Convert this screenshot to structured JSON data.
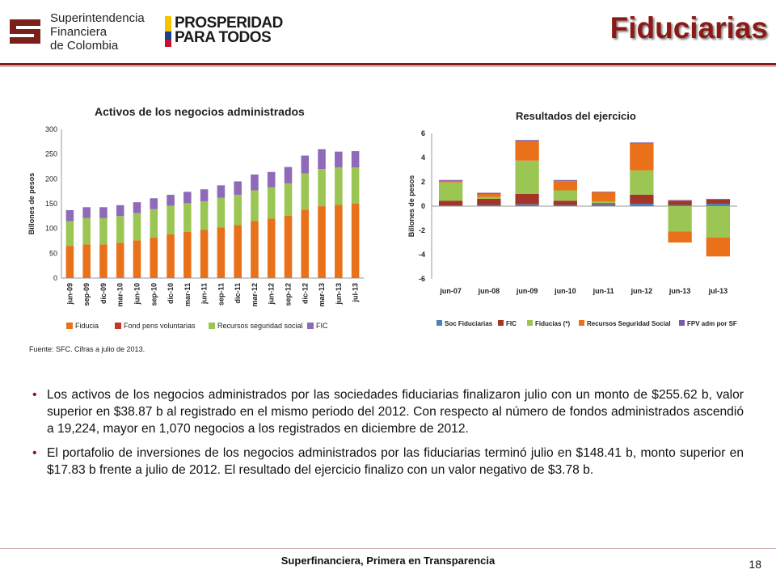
{
  "header": {
    "org_lines": [
      "Superintendencia",
      "Financiera",
      "de Colombia"
    ],
    "campaign_lines": [
      "PROSPERIDAD",
      "PARA TODOS"
    ],
    "title": "Fiduciarias"
  },
  "chart_data": [
    {
      "type": "bar",
      "title": "Activos de los negocios administrados",
      "ylabel": "Billones de pesos",
      "ylim": [
        0,
        300
      ],
      "yticks": [
        0,
        50,
        100,
        150,
        200,
        250,
        300
      ],
      "stacked": true,
      "legend_position": "bottom",
      "categories": [
        "jun-09",
        "sep-09",
        "dic-09",
        "mar-10",
        "jun-10",
        "sep-10",
        "dic-10",
        "mar-11",
        "jun-11",
        "sep-11",
        "dic-11",
        "mar-12",
        "jun-12",
        "sep-12",
        "dic-12",
        "mar-13",
        "jun-13",
        "jul-13"
      ],
      "series": [
        {
          "name": "Fiducia",
          "color": "#e8711a",
          "values": [
            65,
            68,
            68,
            71,
            76,
            82,
            88,
            93,
            97,
            102,
            107,
            115,
            120,
            126,
            138,
            145,
            148,
            150
          ]
        },
        {
          "name": "Fond pens voluntarias",
          "color": "#c0392b",
          "values": [
            0,
            0,
            0,
            0,
            0,
            0,
            0,
            0,
            0,
            0,
            0,
            0,
            0,
            0,
            0,
            0,
            0,
            0
          ]
        },
        {
          "name": "Recursos seguridad social",
          "color": "#9bc653",
          "values": [
            50,
            53,
            53,
            54,
            55,
            57,
            58,
            58,
            58,
            60,
            61,
            62,
            63,
            65,
            73,
            75,
            75,
            73
          ]
        },
        {
          "name": "FIC",
          "color": "#8e6ab8",
          "values": [
            22,
            22,
            22,
            22,
            22,
            22,
            22,
            23,
            24,
            25,
            27,
            32,
            31,
            33,
            36,
            40,
            32,
            33
          ]
        }
      ]
    },
    {
      "type": "bar",
      "title": "Resultados del ejercicio",
      "ylabel": "Billones de pesos",
      "ylim": [
        -6,
        6
      ],
      "yticks": [
        6,
        4,
        2,
        0,
        -2,
        -4,
        -6
      ],
      "stacked": true,
      "legend_position": "bottom",
      "categories": [
        "jun-07",
        "jun-08",
        "jun-09",
        "jun-10",
        "jun-11",
        "jun-12",
        "jun-13",
        "jul-13"
      ],
      "series": [
        {
          "name": "Soc Fiduciarias",
          "color": "#4f81bd",
          "values": [
            0.05,
            0.1,
            0.15,
            0.1,
            0.15,
            0.2,
            0.1,
            0.2
          ]
        },
        {
          "name": "FIC",
          "color": "#a33528",
          "values": [
            0.4,
            0.5,
            0.85,
            0.35,
            0.1,
            0.75,
            0.35,
            0.35
          ]
        },
        {
          "name": "Fiducias (*)",
          "color": "#9bc653",
          "values": [
            1.5,
            0.15,
            2.75,
            0.85,
            0.15,
            2.0,
            -2.1,
            -2.6
          ]
        },
        {
          "name": "Recursos Seguridad Social",
          "color": "#e8711a",
          "values": [
            0.1,
            0.25,
            1.6,
            0.75,
            0.75,
            2.2,
            -0.9,
            -1.55
          ]
        },
        {
          "name": "FPV adm por SF",
          "color": "#7e5aa0",
          "values": [
            0.1,
            0.1,
            0.1,
            0.1,
            0.05,
            0.1,
            0.05,
            0.05
          ]
        }
      ]
    }
  ],
  "source_note": "Fuente: SFC. Cifras a julio de 2013.",
  "bullets": [
    "Los activos de los negocios administrados por las sociedades fiduciarias finalizaron julio con un monto de $255.62 b, valor superior en $38.87 b al registrado en el mismo periodo del 2012. Con respecto al número de fondos administrados ascendió a 19,224, mayor en 1,070 negocios a los registrados en diciembre de 2012.",
    "El portafolio de inversiones de los negocios administrados por las fiduciarias terminó julio en $148.41 b, monto superior en $17.83 b frente a julio de 2012. El resultado del ejercicio finalizo con un valor negativo de $3.78 b."
  ],
  "footer": {
    "text": "Superfinanciera, Primera en Transparencia",
    "page_number": "18"
  }
}
